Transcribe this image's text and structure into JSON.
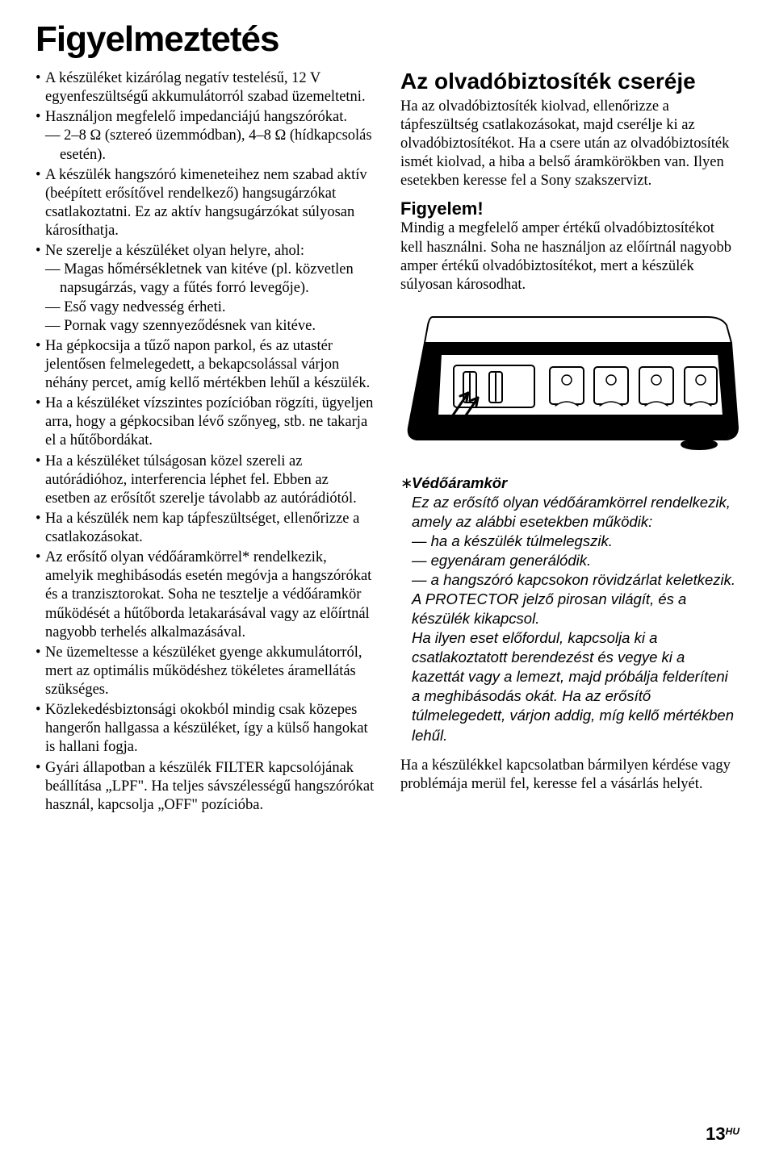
{
  "title": "Figyelmeztetés",
  "left": {
    "items": [
      {
        "text": "A készüléket kizárólag negatív testelésű, 12 V egyenfeszültségű akkumulátorról szabad üzemeltetni."
      },
      {
        "text": "Használjon megfelelő impedanciájú hangszórókat.",
        "subs": [
          "2–8 Ω (sztereó üzemmódban), 4–8 Ω (hídkapcsolás esetén)."
        ]
      },
      {
        "text": "A készülék hangszóró kimeneteihez nem szabad aktív (beépített erősítővel rendelkező) hangsugárzókat csatlakoztatni. Ez az aktív hangsugárzókat súlyosan károsíthatja."
      },
      {
        "text": "Ne szerelje a készüléket olyan helyre, ahol:",
        "subs": [
          "Magas hőmérsékletnek van kitéve (pl. közvetlen napsugárzás, vagy a fűtés forró levegője).",
          "Eső vagy nedvesség érheti.",
          "Pornak vagy szennyeződésnek van kitéve."
        ]
      },
      {
        "text": "Ha gépkocsija a tűző napon parkol, és az utastér jelentősen felmelegedett, a bekapcsolással várjon néhány percet, amíg kellő mértékben lehűl a készülék."
      },
      {
        "text": "Ha a készüléket vízszintes pozícióban rögzíti, ügyeljen arra, hogy a gépkocsiban lévő szőnyeg, stb. ne takarja el a hűtőbordákat."
      },
      {
        "text": "Ha a készüléket túlságosan közel szereli az autórádióhoz, interferencia léphet fel. Ebben az esetben az erősítőt szerelje távolabb az autórádiótól."
      },
      {
        "text": "Ha a készülék nem kap tápfeszültséget, ellenőrizze a csatlakozásokat."
      },
      {
        "text": "Az erősítő olyan védőáramkörrel* rendelkezik, amelyik meghibásodás esetén megóvja a hangszórókat és a tranzisztorokat. Soha ne tesztelje a védőáramkör működését a hűtőborda letakarásával vagy az előírtnál nagyobb terhelés alkalmazásával."
      },
      {
        "text": "Ne üzemeltesse a készüléket gyenge akkumulátorról, mert az optimális működéshez tökéletes áramellátás szükséges."
      },
      {
        "text": "Közlekedésbiztonsági okokból mindig csak közepes hangerőn hallgassa a készüléket, így a külső hangokat is hallani fogja."
      },
      {
        "text": "Gyári állapotban a készülék FILTER kapcsolójának beállítása „LPF\". Ha teljes sávszélességű hangszórókat használ, kapcsolja „OFF\" pozícióba."
      }
    ]
  },
  "right": {
    "fuse_title": "Az olvadóbiztosíték cseréje",
    "fuse_para": "Ha az olvadóbiztosíték kiolvad, ellenőrizze a tápfeszültség csatlakozásokat, majd cserélje ki az olvadóbiztosítékot. Ha a csere után az olvadóbiztosíték ismét kiolvad, a hiba a belső áramkörökben van. Ilyen esetekben keresse fel a Sony szakszervizt.",
    "attention_title": "Figyelem!",
    "attention_para": "Mindig a megfelelő amper értékű olvadóbiztosítékot kell használni. Soha ne használjon az előírtnál nagyobb amper értékű olvadóbiztosítékot, mert a készülék súlyosan károsodhat.",
    "protect": {
      "star": "∗",
      "title": "Védőáramkör",
      "intro": "Ez az erősítő olyan védőáramkörrel rendelkezik, amely az alábbi esetekben működik:",
      "dashes": [
        "ha a készülék túlmelegszik.",
        "egyenáram generálódik.",
        "a hangszóró kapcsokon rövidzárlat keletkezik."
      ],
      "after": "A PROTECTOR jelző pirosan világít, és a készülék kikapcsol.\nHa ilyen eset előfordul, kapcsolja ki a csatlakoztatott berendezést és vegye ki a kazettát vagy a lemezt, majd próbálja felderíteni a meghibásodás okát. Ha az erősítő túlmelegedett, várjon addig, míg kellő mértékben lehűl."
    },
    "closing": "Ha a készülékkel kapcsolatban bármilyen kérdése vagy problémája merül fel, keresse fel a vásárlás helyét."
  },
  "footer": {
    "page": "13",
    "lang": "HU"
  }
}
